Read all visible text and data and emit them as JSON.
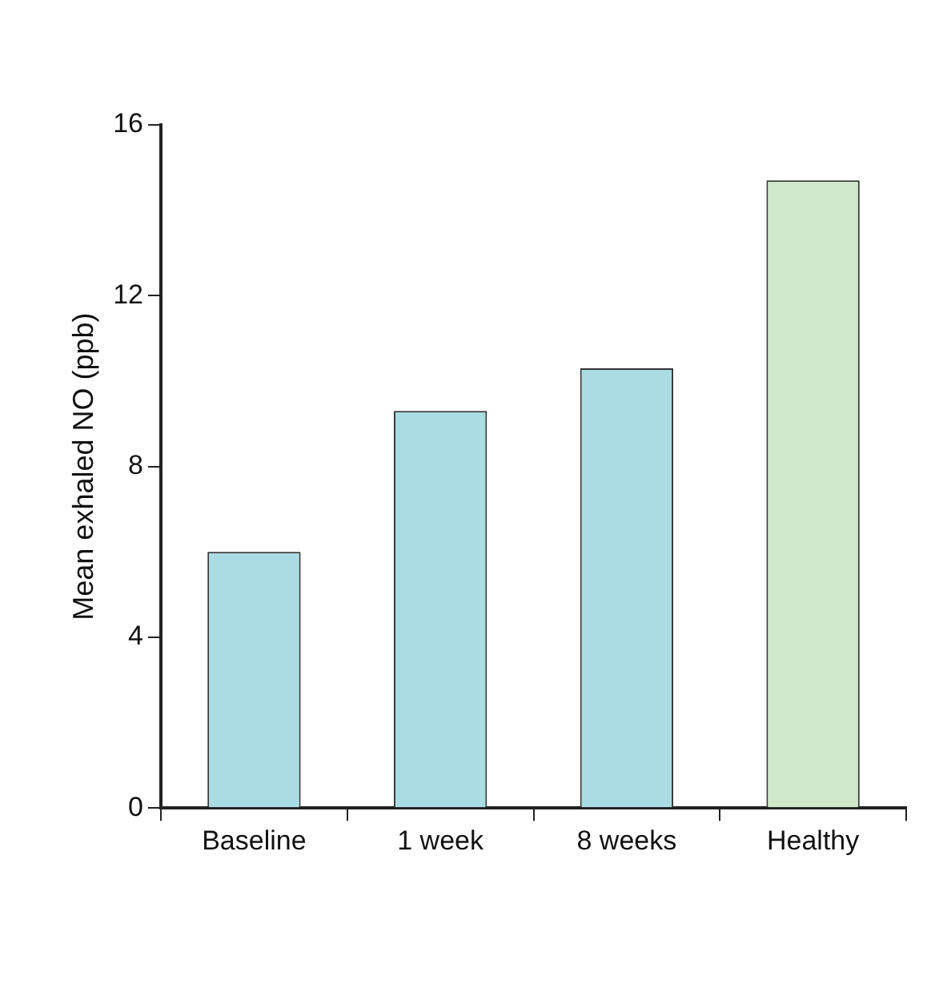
{
  "chart_data": {
    "type": "bar",
    "ylabel": "Mean exhaled NO (ppb)",
    "categories": [
      "Baseline",
      "1 week",
      "8 weeks",
      "Healthy"
    ],
    "values": [
      6.0,
      9.3,
      10.3,
      14.7
    ],
    "colors": [
      "#a9dde3",
      "#a9dde3",
      "#a9dde3",
      "#cfe8c9"
    ],
    "ylim": [
      0,
      16
    ],
    "yticks": [
      0,
      4,
      8,
      12,
      16
    ],
    "grid": false,
    "legend": false
  }
}
